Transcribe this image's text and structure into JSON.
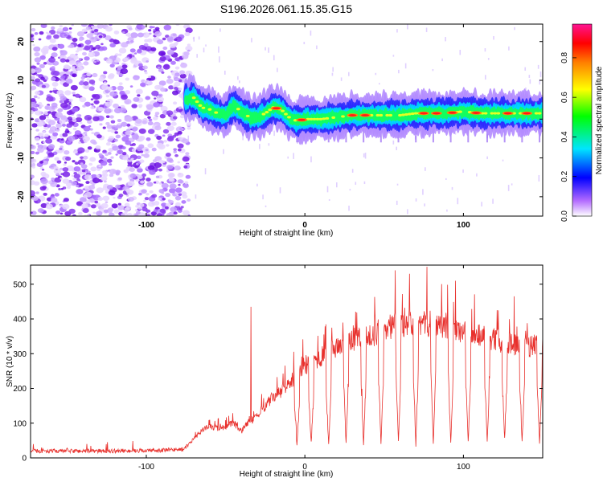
{
  "title": "S196.2026.061.15.35.G15",
  "chart_data": [
    {
      "type": "heatmap",
      "title": "S196.2026.061.15.35.G15",
      "xlabel": "Height of straight line (km)",
      "ylabel": "Frequency (Hz)",
      "xlim": [
        -173,
        150
      ],
      "ylim": [
        -25,
        24.5
      ],
      "x_ticks": [
        -100,
        0,
        100
      ],
      "x_tick_labels": [
        "-100",
        "0",
        "100"
      ],
      "y_ticks": [
        -20,
        -10,
        0,
        10,
        20
      ],
      "y_tick_labels": [
        "-20",
        "-10",
        "0",
        "10",
        "20"
      ],
      "colorbar": {
        "label": "Normalized spectral amplitude",
        "range": [
          0,
          0.97
        ],
        "ticks": [
          0.0,
          0.2,
          0.4,
          0.6,
          0.8
        ],
        "tick_labels": [
          "0.0",
          "0.2",
          "0.4",
          "0.6",
          "0.8"
        ],
        "colors": [
          "#ffffff",
          "#8a2be2",
          "#0000ff",
          "#00e5ff",
          "#00ff00",
          "#ffff00",
          "#ff8c00",
          "#ff0000",
          "#ff1493"
        ]
      },
      "noise_region_x": [
        -173,
        -75
      ],
      "ridge": {
        "description_points_x": [
          -75,
          -70,
          -65,
          -60,
          -55,
          -50,
          -45,
          -40,
          -35,
          -30,
          -25,
          -20,
          -15,
          -10,
          -5,
          0,
          10,
          20,
          30,
          40,
          50,
          60,
          70,
          80,
          90,
          100,
          110,
          120,
          130,
          140,
          150
        ],
        "frequency_hz": [
          5,
          5.5,
          3,
          2.5,
          1.5,
          1,
          3.5,
          2,
          0.5,
          0.5,
          1.5,
          3,
          2.5,
          0.5,
          -0.5,
          0,
          0,
          0.5,
          1,
          1,
          1,
          1,
          1.5,
          1.5,
          1.5,
          2,
          1.5,
          1.5,
          1.5,
          1.5,
          1.5
        ]
      },
      "ridge_hot_spots_x": [
        -18,
        -2,
        30,
        38,
        75,
        83,
        93,
        108,
        128,
        140
      ]
    },
    {
      "type": "line",
      "xlabel": "Height of straight line (km)",
      "ylabel": "SNR (10 * v/v)",
      "xlim": [
        -173,
        150
      ],
      "ylim": [
        0,
        555
      ],
      "x_ticks": [
        -100,
        0,
        100
      ],
      "x_tick_labels": [
        "-100",
        "0",
        "100"
      ],
      "y_ticks": [
        0,
        100,
        200,
        300,
        400,
        500
      ],
      "y_tick_labels": [
        "0",
        "100",
        "200",
        "300",
        "400",
        "500"
      ],
      "line_color": "#e8302c",
      "series": [
        {
          "name": "SNR",
          "x": [
            -173,
            -150,
            -120,
            -90,
            -76,
            -70,
            -65,
            -60,
            -55,
            -50,
            -45,
            -40,
            -35,
            -33,
            -30,
            -25,
            -20,
            -15,
            -10,
            -5,
            0,
            10,
            20,
            30,
            40,
            50,
            60,
            70,
            80,
            90,
            100,
            110,
            120,
            130,
            140,
            150
          ],
          "baseline": [
            20,
            20,
            20,
            22,
            25,
            55,
            80,
            90,
            85,
            90,
            100,
            75,
            110,
            110,
            120,
            150,
            175,
            190,
            215,
            235,
            260,
            290,
            320,
            340,
            350,
            370,
            385,
            390,
            385,
            380,
            360,
            355,
            340,
            330,
            320,
            330
          ]
        }
      ],
      "spike_peaks": [
        {
          "x": -34,
          "y": 435
        },
        {
          "x": 57,
          "y": 540
        },
        {
          "x": 77,
          "y": 550
        },
        {
          "x": 66,
          "y": 530
        },
        {
          "x": 95,
          "y": 510
        },
        {
          "x": 115,
          "y": 475
        },
        {
          "x": 132,
          "y": 465
        },
        {
          "x": 148,
          "y": 420
        }
      ],
      "dips_x": [
        -5,
        4,
        15,
        26,
        37,
        48,
        59,
        70,
        81,
        92,
        103,
        115,
        126,
        137,
        148
      ],
      "dip_min_y": [
        30,
        35,
        30,
        35,
        30,
        30,
        35,
        30,
        35,
        30,
        35,
        40,
        45,
        40,
        40
      ]
    }
  ]
}
